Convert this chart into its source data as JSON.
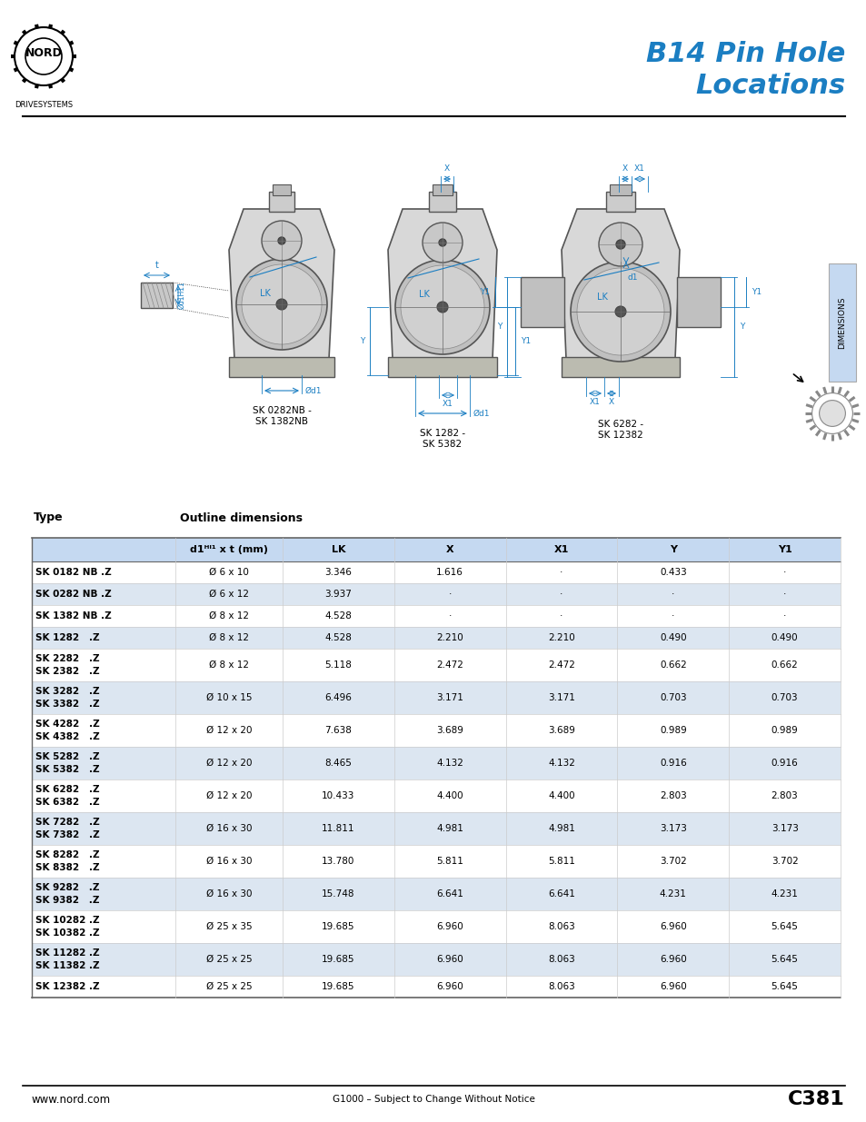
{
  "title_line1": "B14 Pin Hole",
  "title_line2": "Locations",
  "title_color": "#1b7ec2",
  "bg_color": "#ffffff",
  "logo_text": "NORD",
  "logo_subtext": "DRIVESYSTEMS",
  "page_number": "C381",
  "footer_center": "G1000 – Subject to Change Without Notice",
  "footer_left": "www.nord.com",
  "table_header_bg": "#c5d9f1",
  "table_alt_bg": "#dce6f1",
  "col_headers": [
    "d1ᴴᴵ¹ x t (mm)",
    "LK",
    "X",
    "X1",
    "Y",
    "Y1"
  ],
  "type_label": "Type",
  "outline_label": "Outline dimensions",
  "rows": [
    {
      "type": "SK 0182 NB .Z",
      "d1t": "Ø 6 x 10",
      "LK": "3.346",
      "X": "1.616",
      "X1": "·",
      "Y": "0.433",
      "Y1": "·",
      "alt": false,
      "double": false
    },
    {
      "type": "SK 0282 NB .Z",
      "d1t": "Ø 6 x 12",
      "LK": "3.937",
      "X": "·",
      "X1": "·",
      "Y": "·",
      "Y1": "·",
      "alt": true,
      "double": false
    },
    {
      "type": "SK 1382 NB .Z",
      "d1t": "Ø 8 x 12",
      "LK": "4.528",
      "X": "·",
      "X1": "·",
      "Y": "·",
      "Y1": "·",
      "alt": false,
      "double": false
    },
    {
      "type": "SK 1282   .Z",
      "d1t": "Ø 8 x 12",
      "LK": "4.528",
      "X": "2.210",
      "X1": "2.210",
      "Y": "0.490",
      "Y1": "0.490",
      "alt": true,
      "double": false
    },
    {
      "type": "SK 2282   .Z\nSK 2382   .Z",
      "d1t": "Ø 8 x 12",
      "LK": "5.118",
      "X": "2.472",
      "X1": "2.472",
      "Y": "0.662",
      "Y1": "0.662",
      "alt": false,
      "double": true
    },
    {
      "type": "SK 3282   .Z\nSK 3382   .Z",
      "d1t": "Ø 10 x 15",
      "LK": "6.496",
      "X": "3.171",
      "X1": "3.171",
      "Y": "0.703",
      "Y1": "0.703",
      "alt": true,
      "double": true
    },
    {
      "type": "SK 4282   .Z\nSK 4382   .Z",
      "d1t": "Ø 12 x 20",
      "LK": "7.638",
      "X": "3.689",
      "X1": "3.689",
      "Y": "0.989",
      "Y1": "0.989",
      "alt": false,
      "double": true
    },
    {
      "type": "SK 5282   .Z\nSK 5382   .Z",
      "d1t": "Ø 12 x 20",
      "LK": "8.465",
      "X": "4.132",
      "X1": "4.132",
      "Y": "0.916",
      "Y1": "0.916",
      "alt": true,
      "double": true
    },
    {
      "type": "SK 6282   .Z\nSK 6382   .Z",
      "d1t": "Ø 12 x 20",
      "LK": "10.433",
      "X": "4.400",
      "X1": "4.400",
      "Y": "2.803",
      "Y1": "2.803",
      "alt": false,
      "double": true
    },
    {
      "type": "SK 7282   .Z\nSK 7382   .Z",
      "d1t": "Ø 16 x 30",
      "LK": "11.811",
      "X": "4.981",
      "X1": "4.981",
      "Y": "3.173",
      "Y1": "3.173",
      "alt": true,
      "double": true
    },
    {
      "type": "SK 8282   .Z\nSK 8382   .Z",
      "d1t": "Ø 16 x 30",
      "LK": "13.780",
      "X": "5.811",
      "X1": "5.811",
      "Y": "3.702",
      "Y1": "3.702",
      "alt": false,
      "double": true
    },
    {
      "type": "SK 9282   .Z\nSK 9382   .Z",
      "d1t": "Ø 16 x 30",
      "LK": "15.748",
      "X": "6.641",
      "X1": "6.641",
      "Y": "4.231",
      "Y1": "4.231",
      "alt": true,
      "double": true
    },
    {
      "type": "SK 10282 .Z\nSK 10382 .Z",
      "d1t": "Ø 25 x 35",
      "LK": "19.685",
      "X": "6.960",
      "X1": "8.063",
      "Y": "6.960",
      "Y1": "5.645",
      "alt": false,
      "double": true
    },
    {
      "type": "SK 11282 .Z\nSK 11382 .Z",
      "d1t": "Ø 25 x 25",
      "LK": "19.685",
      "X": "6.960",
      "X1": "8.063",
      "Y": "6.960",
      "Y1": "5.645",
      "alt": true,
      "double": true
    },
    {
      "type": "SK 12382 .Z",
      "d1t": "Ø 25 x 25",
      "LK": "19.685",
      "X": "6.960",
      "X1": "8.063",
      "Y": "6.960",
      "Y1": "5.645",
      "alt": false,
      "double": false
    }
  ],
  "dim_color": "#1b7ec2",
  "diagram_label1a": "SK 0282NB -",
  "diagram_label1b": "SK 1382NB",
  "diagram_label2a": "SK 1282 -",
  "diagram_label2b": "SK 5382",
  "diagram_label3a": "SK 6282 -",
  "diagram_label3b": "SK 12382"
}
